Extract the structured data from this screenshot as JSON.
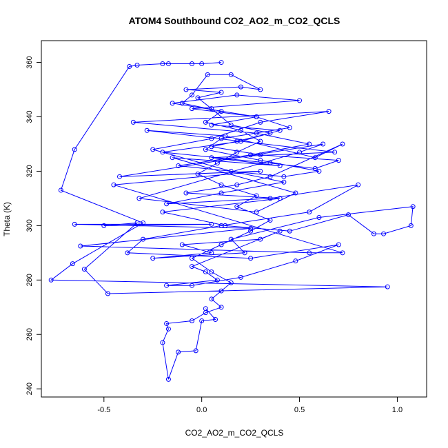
{
  "chart_data": {
    "type": "line",
    "title": "ATOM4 Southbound CO2_AO2_m_CO2_QCLS",
    "xlabel": "CO2_AO2_m_CO2_QCLS",
    "ylabel": "Theta (K)",
    "xlim": [
      -0.82,
      1.15
    ],
    "ylim": [
      237,
      368
    ],
    "xticks": [
      -0.5,
      0.0,
      0.5,
      1.0
    ],
    "xtick_labels": [
      "-0.5",
      "0.0",
      "0.5",
      "1.0"
    ],
    "yticks": [
      240,
      260,
      280,
      300,
      320,
      340,
      360
    ],
    "ytick_labels": [
      "240",
      "260",
      "280",
      "300",
      "320",
      "340",
      "360"
    ],
    "grid": false,
    "series_color": "#0000ff",
    "marker": "open-circle",
    "series": [
      {
        "x": [
          0.1,
          0.0,
          -0.05,
          -0.17,
          -0.2,
          -0.33,
          -0.37,
          -0.65,
          -0.72,
          -0.3,
          -0.66,
          -0.77,
          0.95,
          -0.48,
          -0.6,
          -0.33,
          -0.5,
          0.05,
          -0.65,
          0.25,
          -0.62,
          0.55,
          0.72,
          -0.45,
          0.3,
          -0.42,
          0.62,
          0.5,
          -0.32,
          0.28,
          0.48,
          -0.15,
          0.4,
          0.05,
          0.68,
          -0.28,
          0.12,
          0.58,
          0.72,
          0.35,
          0.18,
          -0.08,
          0.4,
          -0.2,
          0.12,
          0.45,
          0.75,
          0.88,
          0.93,
          1.07,
          1.08,
          0.6,
          0.15,
          0.22,
          -0.25,
          0.05,
          -0.1,
          0.3,
          0.4,
          -0.05,
          0.02,
          0.08,
          -0.18,
          -0.05,
          0.2,
          0.48,
          0.7,
          0.25,
          -0.38,
          -0.3,
          0.1,
          0.55,
          0.8,
          0.35,
          -0.18,
          0.1,
          0.42,
          0.15,
          -0.25,
          0.05,
          0.3,
          0.65,
          -0.35,
          0.28,
          0.55,
          0.25,
          -0.12,
          0.42,
          0.6,
          0.3,
          0.02,
          0.1,
          0.45,
          0.28,
          -0.15,
          0.18,
          0.5,
          -0.05,
          0.28,
          0.05,
          0.4,
          0.2,
          -0.2,
          0.35,
          0.58,
          0.7,
          0.3,
          0.05,
          0.18,
          0.35,
          0.15,
          0.05,
          -0.02,
          0.1,
          -0.08,
          0.2,
          0.3,
          0.15,
          0.03,
          -0.05,
          -0.1,
          0.1,
          0.02,
          0.2,
          0.3,
          0.18,
          0.08,
          -0.02,
          0.1,
          0.28,
          0.18,
          0.35,
          0.25,
          0.1,
          -0.05,
          0.05,
          0.15,
          0.1,
          0.05,
          0.1,
          0.02,
          -0.05,
          -0.18,
          -0.17,
          -0.2,
          -0.17,
          -0.12,
          -0.03,
          0.0,
          0.07,
          0.02
        ],
        "y": [
          360,
          359.5,
          359.5,
          359.5,
          359.5,
          359,
          358.5,
          328,
          313,
          301,
          286,
          280,
          277.5,
          275,
          284,
          301,
          300,
          300.5,
          300.5,
          299,
          292.5,
          290,
          290,
          315,
          320,
          318,
          330,
          327,
          310,
          305,
          312,
          325,
          322,
          325,
          327,
          335,
          333,
          325,
          330,
          318,
          315,
          312,
          310,
          305,
          300,
          298,
          304,
          297,
          297,
          300,
          307,
          303,
          295,
          290,
          288,
          290,
          293,
          295,
          298,
          285,
          283,
          280,
          278,
          278,
          281,
          287,
          293,
          288,
          290,
          295,
          300,
          305,
          315,
          310,
          308,
          312,
          316,
          320,
          328,
          332,
          338,
          342,
          338,
          334,
          330,
          326,
          322,
          318,
          320,
          324,
          328,
          332,
          336,
          340,
          345,
          348,
          346,
          343,
          340,
          337,
          335,
          331,
          327,
          323,
          321,
          324,
          326,
          329,
          331,
          334,
          337,
          343,
          347,
          349,
          350,
          351,
          350,
          355.5,
          355.5,
          348,
          345,
          342,
          338,
          335,
          331,
          327,
          323,
          319,
          315,
          311,
          307,
          302,
          298,
          293,
          288,
          283,
          279,
          276,
          273,
          270,
          268,
          265,
          264,
          262,
          257,
          243.5,
          253.5,
          254,
          265,
          265.5,
          269.5
        ]
      }
    ]
  }
}
